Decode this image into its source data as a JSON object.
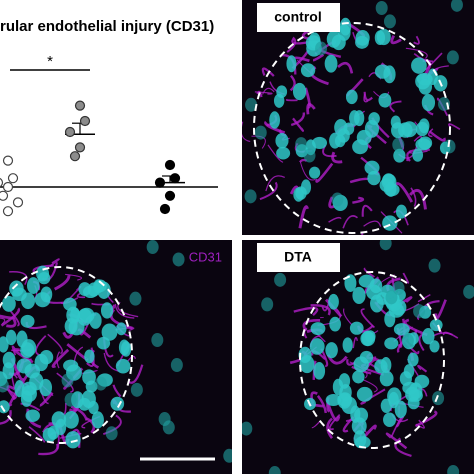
{
  "chart_data": {
    "type": "dot",
    "title": "rular endothelial injury (CD31)",
    "significance": "*",
    "ylim": [
      0,
      100
    ],
    "groups": [
      {
        "values": [
          27,
          19,
          17,
          15,
          11,
          8,
          4
        ],
        "mean": 15,
        "color": "#444444",
        "fill": "#ffffff"
      },
      {
        "values": [
          52,
          45,
          40,
          33,
          29
        ],
        "mean": 39,
        "error": 5,
        "color": "#333333",
        "fill": "#8c8c8c"
      },
      {
        "values": [
          25,
          19,
          17,
          11,
          5
        ],
        "mean": 17,
        "error": 3,
        "color": "#000000",
        "fill": "#000000"
      }
    ]
  },
  "panels": {
    "control": "control",
    "cd31": "CD31",
    "dta": "DTA"
  }
}
